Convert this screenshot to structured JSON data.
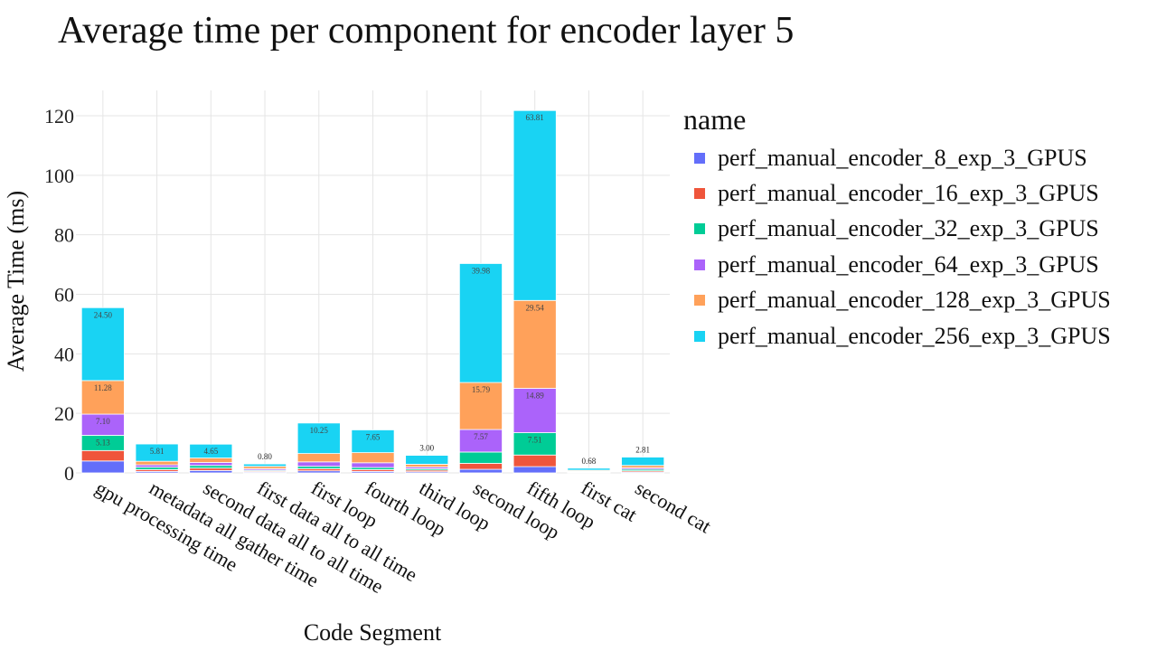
{
  "title": "Average time per component for encoder layer 5",
  "chart_data": {
    "type": "bar",
    "stacked": true,
    "title": "Average time per component for encoder layer 5",
    "xlabel": "Code Segment",
    "ylabel": "Average Time (ms)",
    "ylim": [
      0,
      128
    ],
    "yticks": [
      0,
      20,
      40,
      60,
      80,
      100,
      120
    ],
    "grid": true,
    "legend_title": "name",
    "legend_position": "right",
    "categories": [
      "gpu processing time",
      "metadata all gather time",
      "second data all to all time",
      "first data all to all time",
      "first loop",
      "fourth loop",
      "third loop",
      "second loop",
      "fifth loop",
      "first cat",
      "second cat"
    ],
    "series": [
      {
        "name": "perf_manual_encoder_8_exp_3_GPUS",
        "color": "#636efa",
        "values": [
          4.0,
          0.5,
          0.8,
          0.3,
          0.7,
          0.5,
          0.4,
          1.2,
          2.1,
          0.15,
          0.3
        ],
        "labels": [
          "",
          "",
          "",
          "",
          "",
          "",
          "",
          "",
          "",
          "",
          ""
        ]
      },
      {
        "name": "perf_manual_encoder_16_exp_3_GPUS",
        "color": "#ef553b",
        "values": [
          3.5,
          0.6,
          0.8,
          0.3,
          0.7,
          0.6,
          0.5,
          2.0,
          3.9,
          0.1,
          0.4
        ],
        "labels": [
          "",
          "",
          "",
          "",
          "",
          "",
          "",
          "",
          "",
          "",
          ""
        ]
      },
      {
        "name": "perf_manual_encoder_32_exp_3_GPUS",
        "color": "#00cc96",
        "values": [
          5.13,
          0.8,
          0.9,
          0.3,
          0.8,
          0.7,
          0.5,
          3.8,
          7.51,
          0.15,
          0.5
        ],
        "labels": [
          "5.13",
          "",
          "",
          "",
          "",
          "",
          "",
          "",
          "7.51",
          "",
          ""
        ]
      },
      {
        "name": "perf_manual_encoder_64_exp_3_GPUS",
        "color": "#ab63fa",
        "values": [
          7.1,
          0.8,
          1.0,
          0.5,
          1.5,
          1.6,
          0.6,
          7.57,
          14.89,
          0.2,
          0.5
        ],
        "labels": [
          "7.10",
          "",
          "",
          "",
          "",
          "",
          "",
          "7.57",
          "14.89",
          "",
          ""
        ]
      },
      {
        "name": "perf_manual_encoder_128_exp_3_GPUS",
        "color": "#ffa15a",
        "values": [
          11.28,
          1.2,
          1.5,
          0.8,
          2.8,
          3.4,
          0.9,
          15.79,
          29.54,
          0.3,
          0.8
        ],
        "labels": [
          "11.28",
          "",
          "",
          "",
          "",
          "",
          "",
          "15.79",
          "29.54",
          "",
          ""
        ]
      },
      {
        "name": "perf_manual_encoder_256_exp_3_GPUS",
        "color": "#19d3f3",
        "values": [
          24.5,
          5.81,
          4.65,
          0.8,
          10.25,
          7.65,
          3.0,
          39.98,
          63.81,
          0.68,
          2.81
        ],
        "labels": [
          "24.50",
          "5.81",
          "4.65",
          "0.80",
          "10.25",
          "7.65",
          "3.00",
          "39.98",
          "63.81",
          "0.68",
          "2.81"
        ]
      }
    ]
  }
}
